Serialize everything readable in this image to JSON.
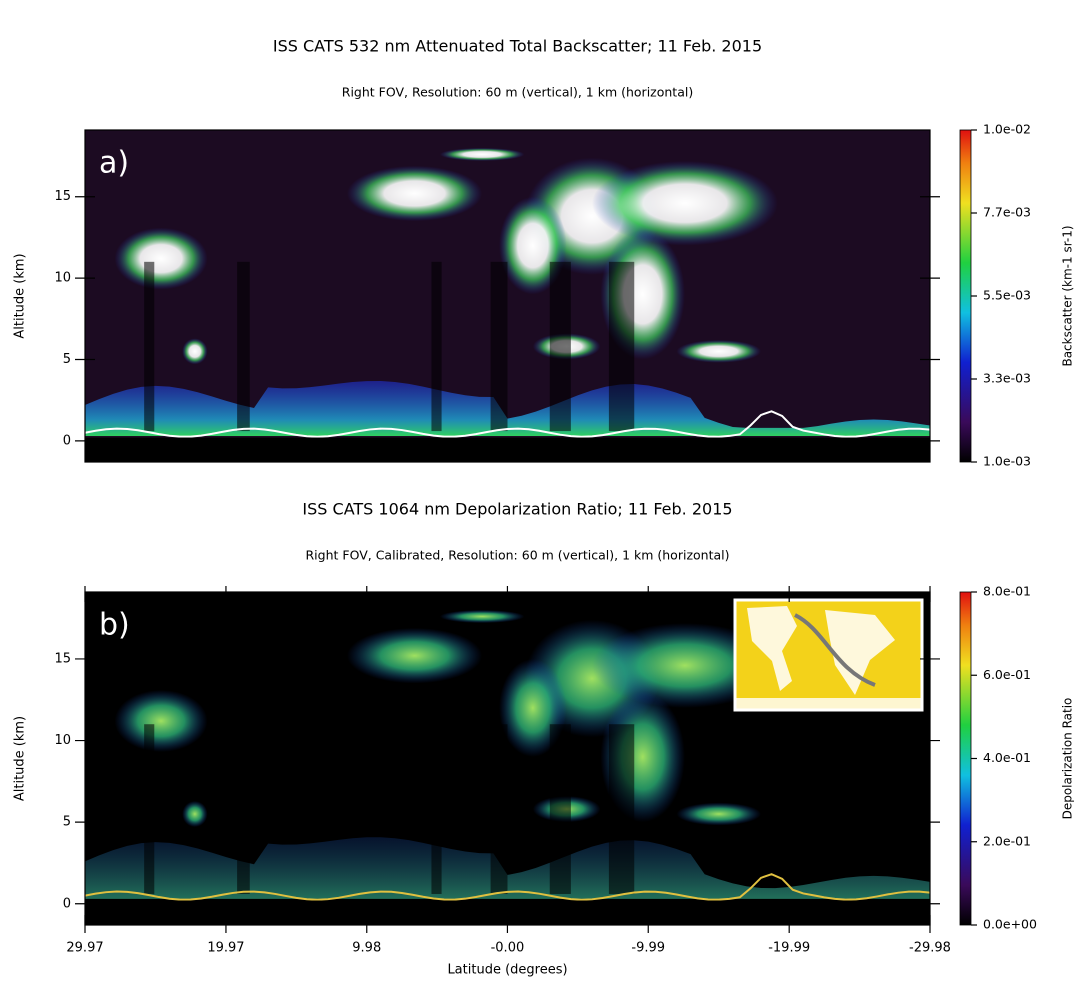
{
  "chart_data": [
    {
      "type": "heatmap",
      "title": "ISS CATS 532 nm Attenuated Total Backscatter; 11 Feb. 2015",
      "subtitle": "Right FOV, Resolution: 60 m (vertical), 1 km (horizontal)",
      "panel_label": "a)",
      "y_label": "Altitude (km)",
      "xlim": [
        29.97,
        -29.98
      ],
      "ylim": [
        -1.3,
        19.1
      ],
      "yticks": [
        0,
        5,
        10,
        15
      ],
      "colorbar_label": "Backscatter (km-1 sr-1)",
      "clim": [
        0.001,
        0.01
      ],
      "cticks": [
        {
          "value": 0.001,
          "label": "1.0e-03"
        },
        {
          "value": 0.00325,
          "label": "3.3e-03"
        },
        {
          "value": 0.0055,
          "label": "5.5e-03"
        },
        {
          "value": 0.00775,
          "label": "7.7e-03"
        },
        {
          "value": 0.01,
          "label": "1.0e-02"
        }
      ]
    },
    {
      "type": "heatmap",
      "title": "ISS CATS 1064 nm Depolarization Ratio; 11 Feb. 2015",
      "subtitle": "Right FOV, Calibrated, Resolution: 60 m (vertical), 1 km (horizontal)",
      "panel_label": "b)",
      "y_label": "Altitude (km)",
      "x_label": "Latitude (degrees)",
      "xlim": [
        29.97,
        -29.98
      ],
      "xticks": [
        29.97,
        19.97,
        9.98,
        {
          "value": 0,
          "label": "-0.00"
        },
        -9.99,
        -19.99,
        -29.98
      ],
      "ylim": [
        -1.3,
        19.1
      ],
      "yticks": [
        0,
        5,
        10,
        15
      ],
      "colorbar_label": "Depolarization Ratio",
      "clim": [
        0,
        0.8
      ],
      "cticks": [
        {
          "value": 0,
          "label": "0.0e+00"
        },
        {
          "value": 0.2,
          "label": "2.0e-01"
        },
        {
          "value": 0.4,
          "label": "4.0e-01"
        },
        {
          "value": 0.6,
          "label": "6.0e-01"
        },
        {
          "value": 0.8,
          "label": "8.0e-01"
        }
      ]
    }
  ]
}
